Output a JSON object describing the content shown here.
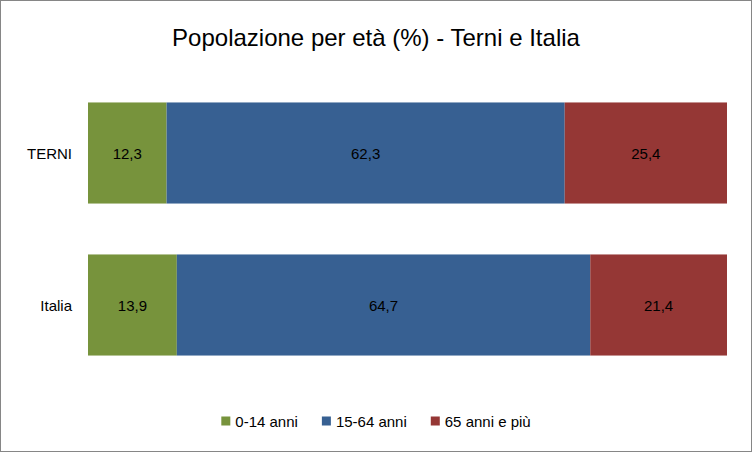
{
  "chart_data": {
    "type": "bar",
    "title": "Popolazione per età (%) - Terni e Italia",
    "orientation": "horizontal",
    "stacked": true,
    "data_labels": true,
    "tick_labels": false,
    "legend": "bottom",
    "xlim": [
      0,
      100
    ],
    "categories": [
      "TERNI",
      "Italia"
    ],
    "series": [
      {
        "name": "0-14 anni",
        "color": "#77933c",
        "values": [
          12.3,
          13.9
        ],
        "value_labels": [
          "12,3",
          "13,9"
        ]
      },
      {
        "name": "15-64 anni",
        "color": "#376092",
        "values": [
          62.3,
          64.7
        ],
        "value_labels": [
          "62,3",
          "64,7"
        ]
      },
      {
        "name": "65 anni e più",
        "color": "#953735",
        "values": [
          25.4,
          21.4
        ],
        "value_labels": [
          "25,4",
          "21,4"
        ]
      }
    ]
  }
}
